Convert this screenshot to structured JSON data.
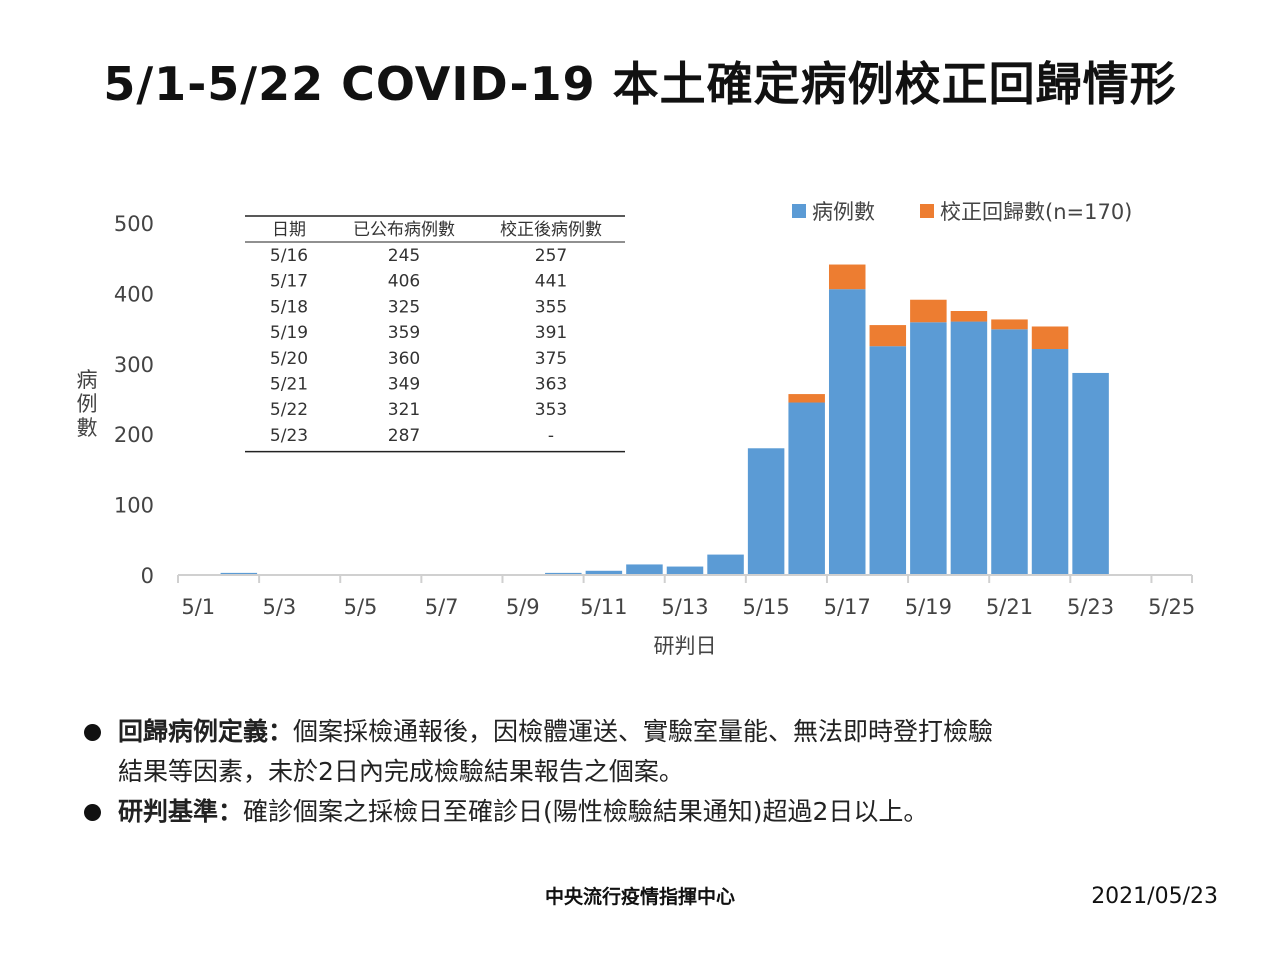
{
  "title": "5/1-5/22 COVID-19 本土確定病例校正回歸情形",
  "chart_data": {
    "type": "bar",
    "stacked": true,
    "xlabel": "研判日",
    "ylabel": "病例數",
    "ylim": [
      0,
      500
    ],
    "yticks": [
      0,
      100,
      200,
      300,
      400,
      500
    ],
    "xtick_labels": [
      "5/1",
      "5/3",
      "5/5",
      "5/7",
      "5/9",
      "5/11",
      "5/13",
      "5/15",
      "5/17",
      "5/19",
      "5/21",
      "5/23",
      "5/25"
    ],
    "categories": [
      "5/1",
      "5/2",
      "5/3",
      "5/4",
      "5/5",
      "5/6",
      "5/7",
      "5/8",
      "5/9",
      "5/10",
      "5/11",
      "5/12",
      "5/13",
      "5/14",
      "5/15",
      "5/16",
      "5/17",
      "5/18",
      "5/19",
      "5/20",
      "5/21",
      "5/22",
      "5/23",
      "5/24"
    ],
    "series": [
      {
        "name": "病例數",
        "color": "#5B9BD5",
        "values": [
          0,
          3,
          0,
          0,
          0,
          0,
          0,
          0,
          0,
          3,
          6,
          15,
          12,
          29,
          180,
          245,
          406,
          325,
          359,
          360,
          349,
          321,
          287,
          0
        ]
      },
      {
        "name": "校正回歸數(n=170)",
        "color": "#ED7D31",
        "values": [
          0,
          0,
          0,
          0,
          0,
          0,
          0,
          0,
          0,
          0,
          0,
          0,
          0,
          0,
          0,
          12,
          35,
          30,
          32,
          15,
          14,
          32,
          0,
          0
        ]
      }
    ],
    "legend_position": "top-right",
    "grid": false
  },
  "table": {
    "headers": [
      "日期",
      "已公布病例數",
      "校正後病例數"
    ],
    "rows": [
      [
        "5/16",
        "245",
        "257"
      ],
      [
        "5/17",
        "406",
        "441"
      ],
      [
        "5/18",
        "325",
        "355"
      ],
      [
        "5/19",
        "359",
        "391"
      ],
      [
        "5/20",
        "360",
        "375"
      ],
      [
        "5/21",
        "349",
        "363"
      ],
      [
        "5/22",
        "321",
        "353"
      ],
      [
        "5/23",
        "287",
        "-"
      ]
    ]
  },
  "notes": [
    {
      "label": "回歸病例定義：",
      "text1": "個案採檢通報後，因檢體運送、實驗室量能、無法即時登打檢驗",
      "text2": "結果等因素，未於2日內完成檢驗結果報告之個案。"
    },
    {
      "label": "研判基準：",
      "text1": "確診個案之採檢日至確診日(陽性檢驗結果通知)超過2日以上。"
    }
  ],
  "footer": {
    "org": "中央流行疫情指揮中心",
    "date": "2021/05/23"
  }
}
